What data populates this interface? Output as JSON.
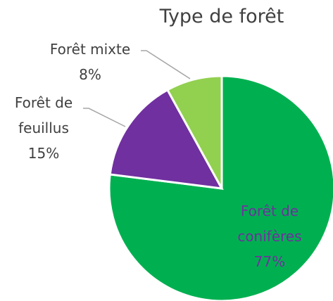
{
  "chart_data": {
    "type": "pie",
    "title": "Type de forêt",
    "categories": [
      "Forêt de conifères",
      "Forêt de feuillus",
      "Forêt mixte"
    ],
    "values": [
      77,
      15,
      8
    ],
    "value_labels": [
      "77%",
      "15%",
      "8%"
    ],
    "colors": [
      "#00b050",
      "#7030a0",
      "#92d050"
    ]
  }
}
